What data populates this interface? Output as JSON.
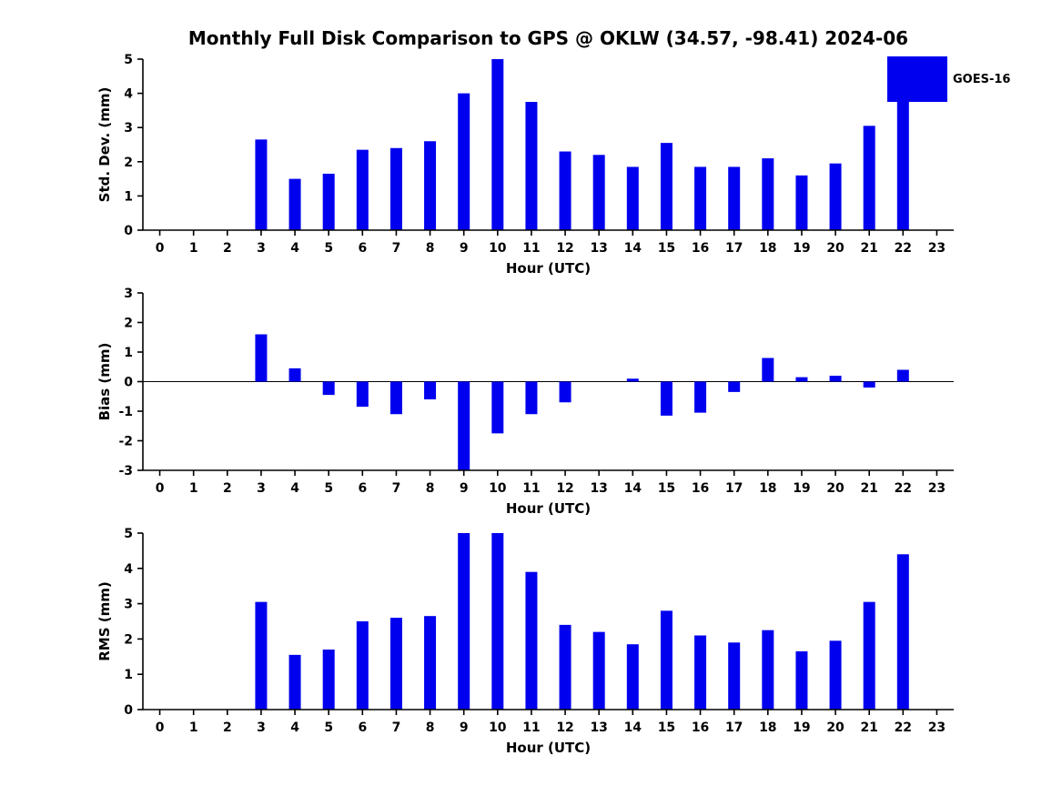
{
  "title": "Monthly Full Disk Comparison to GPS @ OKLW (34.57, -98.41) 2024-06",
  "legend": {
    "label": "GOES-16",
    "position": "upper-right"
  },
  "colors": {
    "bar": "#0000ee",
    "axis": "#000000",
    "background": "#ffffff"
  },
  "chart_data": [
    {
      "type": "bar",
      "name": "std-dev",
      "ylabel": "Std. Dev. (mm)",
      "xlabel": "Hour (UTC)",
      "ylim": [
        0,
        5
      ],
      "yticks": [
        0,
        1,
        2,
        3,
        4,
        5
      ],
      "grid": false,
      "categories": [
        "0",
        "1",
        "2",
        "3",
        "4",
        "5",
        "6",
        "7",
        "8",
        "9",
        "10",
        "11",
        "12",
        "13",
        "14",
        "15",
        "16",
        "17",
        "18",
        "19",
        "20",
        "21",
        "22",
        "23"
      ],
      "series": [
        {
          "name": "GOES-16",
          "values": [
            0,
            0,
            0,
            2.65,
            1.5,
            1.65,
            2.35,
            2.4,
            2.6,
            4.0,
            5.0,
            3.75,
            2.3,
            2.2,
            1.85,
            2.55,
            1.85,
            1.85,
            2.1,
            1.6,
            1.95,
            3.05,
            4.4,
            0
          ]
        }
      ]
    },
    {
      "type": "bar",
      "name": "bias",
      "ylabel": "Bias (mm)",
      "xlabel": "Hour (UTC)",
      "ylim": [
        -3,
        3
      ],
      "yticks": [
        -3,
        -2,
        -1,
        0,
        1,
        2,
        3
      ],
      "grid": false,
      "zero_line": true,
      "categories": [
        "0",
        "1",
        "2",
        "3",
        "4",
        "5",
        "6",
        "7",
        "8",
        "9",
        "10",
        "11",
        "12",
        "13",
        "14",
        "15",
        "16",
        "17",
        "18",
        "19",
        "20",
        "21",
        "22",
        "23"
      ],
      "series": [
        {
          "name": "GOES-16",
          "values": [
            0,
            0,
            0,
            1.6,
            0.45,
            -0.45,
            -0.85,
            -1.1,
            -0.6,
            -3.0,
            -1.75,
            -1.1,
            -0.7,
            0,
            0.1,
            -1.15,
            -1.05,
            -0.35,
            0.8,
            0.15,
            0.2,
            -0.2,
            0.4,
            0
          ]
        }
      ]
    },
    {
      "type": "bar",
      "name": "rms",
      "ylabel": "RMS (mm)",
      "xlabel": "Hour (UTC)",
      "ylim": [
        0,
        5
      ],
      "yticks": [
        0,
        1,
        2,
        3,
        4,
        5
      ],
      "grid": false,
      "categories": [
        "0",
        "1",
        "2",
        "3",
        "4",
        "5",
        "6",
        "7",
        "8",
        "9",
        "10",
        "11",
        "12",
        "13",
        "14",
        "15",
        "16",
        "17",
        "18",
        "19",
        "20",
        "21",
        "22",
        "23"
      ],
      "series": [
        {
          "name": "GOES-16",
          "values": [
            0,
            0,
            0,
            3.05,
            1.55,
            1.7,
            2.5,
            2.6,
            2.65,
            5.0,
            5.0,
            3.9,
            2.4,
            2.2,
            1.85,
            2.8,
            2.1,
            1.9,
            2.25,
            1.65,
            1.95,
            3.05,
            4.4,
            0
          ]
        }
      ]
    }
  ]
}
